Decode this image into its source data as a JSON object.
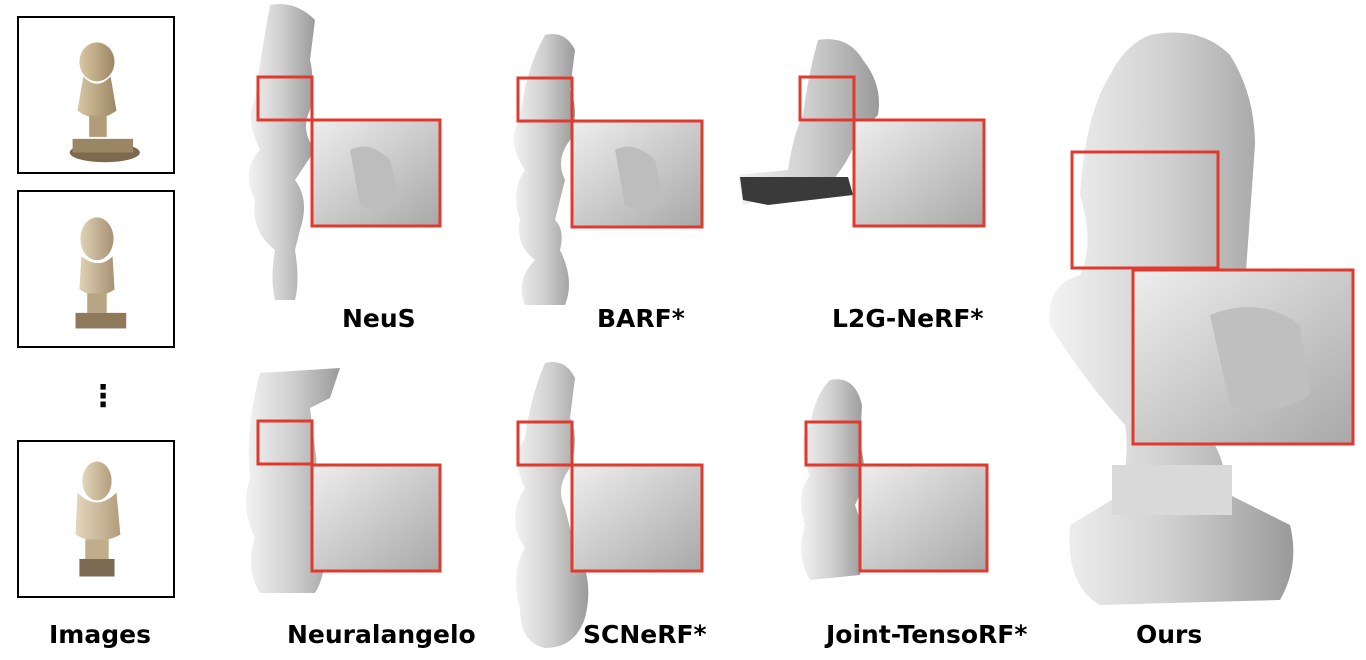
{
  "input_images_label": "Images",
  "ellipsis": "⋮",
  "methods": [
    {
      "id": "neus",
      "label": "NeuS"
    },
    {
      "id": "barf",
      "label": "BARF*"
    },
    {
      "id": "l2g",
      "label": "L2G-NeRF*"
    },
    {
      "id": "neuralangelo",
      "label": "Neuralangelo"
    },
    {
      "id": "scnerf",
      "label": "SCNeRF*"
    },
    {
      "id": "joint",
      "label": "Joint-TensoRF*"
    },
    {
      "id": "ours",
      "label": "Ours"
    }
  ],
  "colors": {
    "highlight_box": "#e03a2f",
    "mesh": "#c8c8c8",
    "photo_statue": "#c4b08a"
  }
}
